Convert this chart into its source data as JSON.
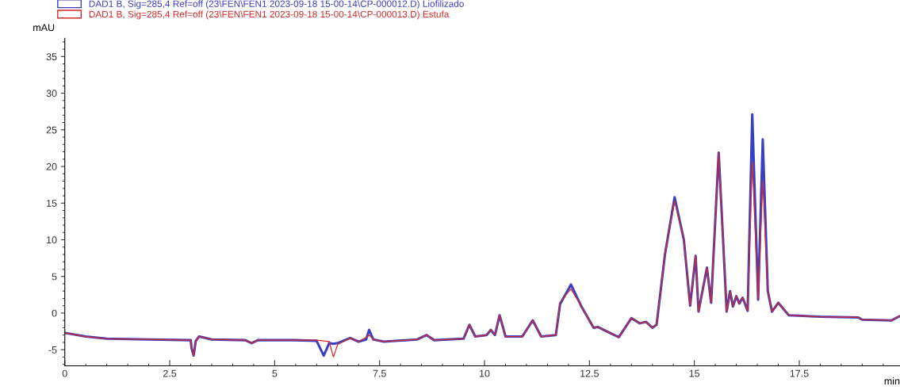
{
  "chart_data": {
    "type": "line",
    "ylabel": "mAU",
    "xlabel": "min",
    "legend": "top left",
    "grid": false,
    "marker": "none",
    "line_style": "solid",
    "xlim": [
      0,
      19.9
    ],
    "ylim": [
      -7.2,
      37.5
    ],
    "xticks": [
      0,
      2.5,
      5,
      7.5,
      10,
      12.5,
      15,
      17.5
    ],
    "yticks": [
      -5,
      0,
      5,
      10,
      15,
      20,
      25,
      30,
      35
    ],
    "x": [
      0,
      0.5,
      1,
      2,
      3,
      3.02,
      3.07,
      3.12,
      3.2,
      3.5,
      4.3,
      4.45,
      4.6,
      5.5,
      6.0,
      6.17,
      6.3,
      6.4,
      6.5,
      6.8,
      7.0,
      7.18,
      7.25,
      7.35,
      7.6,
      8.4,
      8.62,
      8.8,
      9.5,
      9.64,
      9.78,
      10.05,
      10.15,
      10.25,
      10.36,
      10.5,
      10.9,
      11.15,
      11.35,
      11.7,
      11.8,
      12.06,
      12.3,
      12.6,
      12.7,
      13.2,
      13.5,
      13.7,
      13.85,
      14.0,
      14.1,
      14.3,
      14.53,
      14.75,
      14.9,
      15.03,
      15.1,
      15.3,
      15.4,
      15.58,
      15.77,
      15.85,
      15.92,
      16.0,
      16.07,
      16.15,
      16.27,
      16.38,
      16.52,
      16.63,
      16.75,
      16.85,
      17.0,
      17.25,
      18.0,
      18.9,
      19.0,
      19.7,
      19.9
    ],
    "series": [
      {
        "name": "DAD1 B, Sig=285,4 Ref=off (23\\FEN\\FEN1 2023-09-18 15-00-14\\CP-000012.D) Liofilizado",
        "color": "#3a3fc4",
        "values": [
          -2.7,
          -3.2,
          -3.5,
          -3.6,
          -3.7,
          -4.8,
          -5.8,
          -3.8,
          -3.2,
          -3.6,
          -3.7,
          -4.1,
          -3.7,
          -3.7,
          -3.8,
          -5.8,
          -4.1,
          -4.2,
          -4.1,
          -3.4,
          -3.9,
          -3.6,
          -2.3,
          -3.6,
          -3.9,
          -3.6,
          -3.0,
          -3.7,
          -3.5,
          -1.6,
          -3.2,
          -3.0,
          -2.3,
          -3.0,
          -0.3,
          -3.2,
          -3.2,
          -1.0,
          -3.2,
          -3.0,
          1.2,
          3.9,
          1.0,
          -2.0,
          -1.9,
          -3.3,
          -0.7,
          -1.4,
          -1.2,
          -2.0,
          -1.6,
          8.0,
          15.8,
          10.0,
          1.0,
          7.8,
          0.2,
          6.2,
          1.4,
          21.9,
          0.2,
          3.0,
          0.9,
          2.3,
          1.3,
          2.1,
          0.3,
          27.1,
          1.8,
          23.7,
          3.0,
          0.2,
          1.4,
          -0.3,
          -0.5,
          -0.6,
          -0.9,
          -1.0,
          -0.4
        ]
      },
      {
        "name": "DAD1 B, Sig=285,4 Ref=off (23\\FEN\\FEN1 2023-09-18 15-00-14\\CP-000013.D) Estufa",
        "color": "#d42a2a",
        "values": [
          -2.7,
          -3.2,
          -3.5,
          -3.6,
          -3.7,
          -4.8,
          -5.8,
          -3.8,
          -3.2,
          -3.6,
          -3.7,
          -4.1,
          -3.7,
          -3.7,
          -3.7,
          -3.8,
          -3.9,
          -6.0,
          -4.3,
          -3.4,
          -3.9,
          -3.3,
          -3.0,
          -3.6,
          -3.9,
          -3.6,
          -3.0,
          -3.7,
          -3.5,
          -1.6,
          -3.2,
          -3.0,
          -2.3,
          -3.0,
          -0.3,
          -3.2,
          -3.2,
          -1.0,
          -3.2,
          -3.0,
          1.5,
          3.3,
          1.0,
          -2.0,
          -1.9,
          -3.3,
          -0.7,
          -1.4,
          -1.2,
          -2.0,
          -1.6,
          8.0,
          15.3,
          10.0,
          1.0,
          7.8,
          0.2,
          6.2,
          1.4,
          21.9,
          0.2,
          3.0,
          0.9,
          2.3,
          1.3,
          2.1,
          0.3,
          20.6,
          1.8,
          18.0,
          3.0,
          0.2,
          1.4,
          -0.3,
          -0.5,
          -0.6,
          -0.9,
          -1.0,
          -0.4
        ]
      }
    ]
  }
}
